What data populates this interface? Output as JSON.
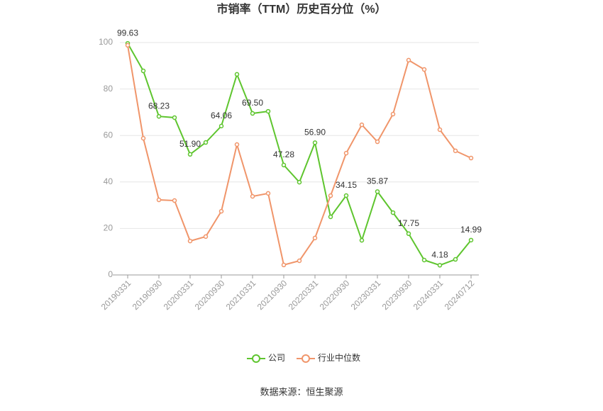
{
  "chart_data": {
    "type": "line",
    "title": "市销率（TTM）历史百分位（%）",
    "categories": [
      "20190331",
      null,
      "20190930",
      null,
      "20200331",
      null,
      "20200930",
      null,
      "20210331",
      null,
      "20210930",
      null,
      "20220331",
      null,
      "20220930",
      null,
      "20230331",
      null,
      "20230930",
      null,
      "20240331",
      null,
      "20240712"
    ],
    "series": [
      {
        "name": "公司",
        "color": "#5ec52e",
        "values": [
          99.63,
          87.8,
          68.23,
          67.7,
          51.9,
          57.0,
          64.06,
          86.3,
          69.5,
          70.4,
          47.28,
          39.9,
          56.9,
          25.0,
          34.15,
          14.9,
          35.87,
          26.8,
          17.75,
          6.4,
          4.18,
          6.7,
          14.99
        ],
        "value_labels": [
          "99.63",
          null,
          "68.23",
          null,
          "51.90",
          null,
          "64.06",
          null,
          "69.50",
          null,
          "47.28",
          null,
          "56.90",
          null,
          "34.15",
          null,
          "35.87",
          null,
          "17.75",
          null,
          "4.18",
          null,
          "14.99"
        ]
      },
      {
        "name": "行业中位数",
        "color": "#f0956a",
        "values": [
          98.8,
          58.8,
          32.3,
          32.0,
          14.6,
          16.5,
          27.4,
          56.1,
          33.8,
          35.1,
          4.3,
          6.1,
          15.9,
          34.1,
          52.4,
          64.6,
          57.3,
          69.2,
          92.4,
          88.4,
          62.5,
          53.4,
          50.3
        ]
      }
    ],
    "ylim": [
      0,
      100
    ],
    "yticks": [
      0,
      20,
      40,
      60,
      80,
      100
    ],
    "grid": true,
    "source": "数据来源：恒生聚源"
  }
}
